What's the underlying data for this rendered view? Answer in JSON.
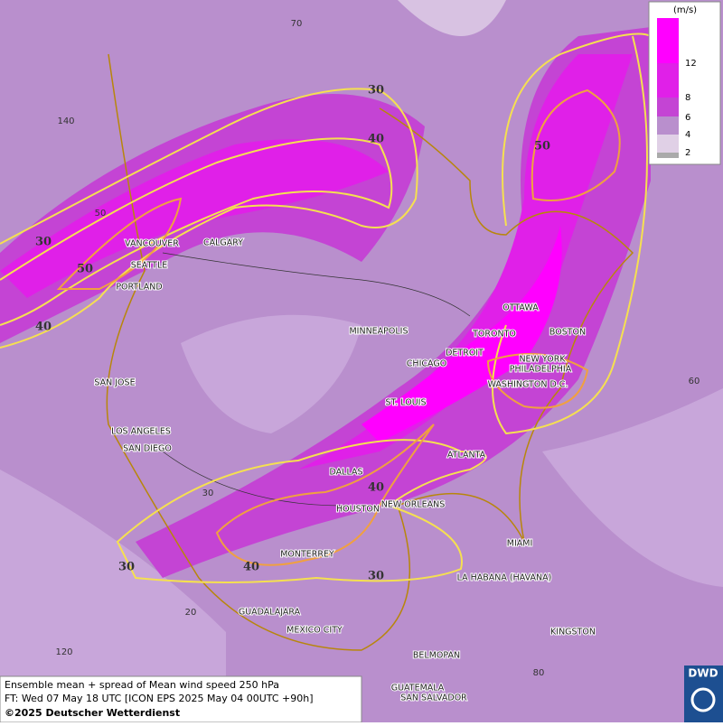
{
  "map": {
    "cities": [
      "VANCOUVER",
      "CALGARY",
      "SEATTLE",
      "PORTLAND",
      "MINNEAPOLIS",
      "OTTAWA",
      "TORONTO",
      "DETROIT",
      "BOSTON",
      "NEW YORK",
      "PHILADELPHIA",
      "CHICAGO",
      "WASHINGTON D.C.",
      "ST. LOUIS",
      "SAN JOSE",
      "LOS ANGELES",
      "SAN DIEGO",
      "DALLAS",
      "ATLANTA",
      "HOUSTON",
      "NEW ORLEANS",
      "MIAMI",
      "MONTERREY",
      "LA HABANA (HAVANA)",
      "GUADALAJARA",
      "MEXICO CITY",
      "KINGSTON",
      "BELMOPAN",
      "GUATEMALA",
      "SAN SALVADOR"
    ],
    "grid_labels": [
      70,
      140,
      50,
      60,
      30,
      20,
      120,
      80
    ],
    "contour_labels": [
      30,
      40,
      30,
      50,
      40,
      50,
      40,
      30,
      40,
      30
    ],
    "legend": {
      "unit": "(m/s)",
      "ticks": [
        12,
        8,
        6,
        4,
        2
      ]
    },
    "footer": [
      "Ensemble mean + spread of Mean wind speed 250 hPa",
      "FT: Wed 07 May 18 UTC [ICON EPS 2025 May 04 00UTC +90h]",
      "©2025 Deutscher Wetterdienst"
    ],
    "logo": "DWD"
  }
}
